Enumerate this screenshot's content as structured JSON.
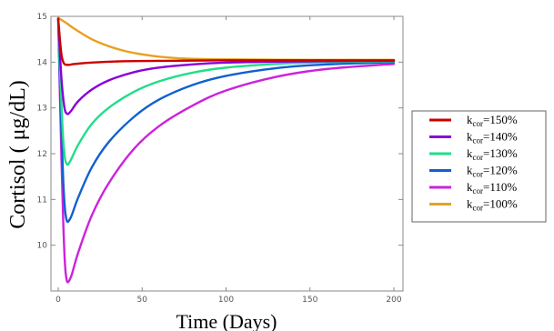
{
  "chart_data": {
    "type": "line",
    "xlabel": "Time (Days)",
    "ylabel": "Cortisol ( μg/dL)",
    "xlim": [
      0,
      200
    ],
    "ylim": [
      9,
      15
    ],
    "x_ticks": [
      0,
      50,
      100,
      150,
      200
    ],
    "y_ticks": [
      10,
      11,
      12,
      13,
      14,
      15
    ],
    "grid": false,
    "legend_position": "right",
    "series": [
      {
        "name": "k_cor=150%",
        "legend": {
          "base": "k",
          "sub": "cor",
          "rest": "=150%"
        },
        "color": "#cc0000",
        "points": [
          [
            0,
            14.95
          ],
          [
            1,
            14.5
          ],
          [
            2,
            14.15
          ],
          [
            3,
            14.0
          ],
          [
            4,
            13.95
          ],
          [
            6,
            13.94
          ],
          [
            10,
            13.96
          ],
          [
            20,
            13.99
          ],
          [
            40,
            14.02
          ],
          [
            70,
            14.03
          ],
          [
            100,
            14.04
          ],
          [
            150,
            14.04
          ],
          [
            200,
            14.04
          ]
        ]
      },
      {
        "name": "k_cor=140%",
        "legend": {
          "base": "k",
          "sub": "cor",
          "rest": "=140%"
        },
        "color": "#8b00d6",
        "points": [
          [
            0,
            14.95
          ],
          [
            1,
            14.2
          ],
          [
            2,
            13.6
          ],
          [
            3,
            13.2
          ],
          [
            4,
            12.95
          ],
          [
            5,
            12.88
          ],
          [
            6,
            12.87
          ],
          [
            8,
            12.95
          ],
          [
            12,
            13.15
          ],
          [
            20,
            13.4
          ],
          [
            30,
            13.6
          ],
          [
            45,
            13.78
          ],
          [
            60,
            13.88
          ],
          [
            80,
            13.95
          ],
          [
            100,
            13.99
          ],
          [
            130,
            14.01
          ],
          [
            160,
            14.02
          ],
          [
            200,
            14.03
          ]
        ]
      },
      {
        "name": "k_cor=130%",
        "legend": {
          "base": "k",
          "sub": "cor",
          "rest": "=130%"
        },
        "color": "#22dd88",
        "points": [
          [
            0,
            14.95
          ],
          [
            1,
            13.9
          ],
          [
            2,
            13.0
          ],
          [
            3,
            12.3
          ],
          [
            4,
            11.9
          ],
          [
            5,
            11.78
          ],
          [
            6,
            11.77
          ],
          [
            8,
            11.9
          ],
          [
            12,
            12.2
          ],
          [
            20,
            12.65
          ],
          [
            30,
            13.0
          ],
          [
            45,
            13.35
          ],
          [
            60,
            13.58
          ],
          [
            80,
            13.77
          ],
          [
            100,
            13.88
          ],
          [
            130,
            13.96
          ],
          [
            160,
            14.0
          ],
          [
            200,
            14.02
          ]
        ]
      },
      {
        "name": "k_cor=120%",
        "legend": {
          "base": "k",
          "sub": "cor",
          "rest": "=120%"
        },
        "color": "#1060d0",
        "points": [
          [
            0,
            14.95
          ],
          [
            1,
            13.6
          ],
          [
            2,
            12.4
          ],
          [
            3,
            11.4
          ],
          [
            4,
            10.8
          ],
          [
            5,
            10.55
          ],
          [
            6,
            10.52
          ],
          [
            8,
            10.65
          ],
          [
            12,
            11.05
          ],
          [
            20,
            11.7
          ],
          [
            30,
            12.25
          ],
          [
            45,
            12.8
          ],
          [
            60,
            13.18
          ],
          [
            80,
            13.5
          ],
          [
            100,
            13.7
          ],
          [
            130,
            13.87
          ],
          [
            160,
            13.95
          ],
          [
            200,
            14.0
          ]
        ]
      },
      {
        "name": "k_cor=110%",
        "legend": {
          "base": "k",
          "sub": "cor",
          "rest": "=110%"
        },
        "color": "#cc22dd",
        "points": [
          [
            0,
            14.95
          ],
          [
            1,
            13.3
          ],
          [
            2,
            11.8
          ],
          [
            3,
            10.5
          ],
          [
            4,
            9.6
          ],
          [
            5,
            9.25
          ],
          [
            6,
            9.2
          ],
          [
            8,
            9.35
          ],
          [
            12,
            9.85
          ],
          [
            20,
            10.65
          ],
          [
            30,
            11.35
          ],
          [
            45,
            12.1
          ],
          [
            60,
            12.6
          ],
          [
            80,
            13.05
          ],
          [
            100,
            13.38
          ],
          [
            130,
            13.68
          ],
          [
            160,
            13.85
          ],
          [
            200,
            13.96
          ]
        ]
      },
      {
        "name": "k_cor=100%",
        "legend": {
          "base": "k",
          "sub": "cor",
          "rest": "=100%"
        },
        "color": "#e8a020",
        "points": [
          [
            0,
            14.97
          ],
          [
            5,
            14.85
          ],
          [
            10,
            14.72
          ],
          [
            20,
            14.5
          ],
          [
            30,
            14.35
          ],
          [
            40,
            14.24
          ],
          [
            50,
            14.17
          ],
          [
            60,
            14.12
          ],
          [
            75,
            14.08
          ],
          [
            100,
            14.06
          ],
          [
            150,
            14.05
          ],
          [
            200,
            14.05
          ]
        ]
      }
    ]
  }
}
